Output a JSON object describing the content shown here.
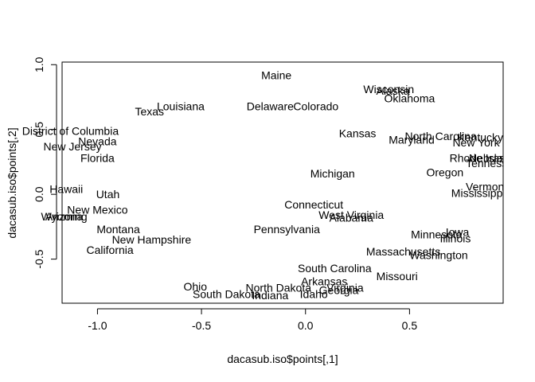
{
  "chart_data": {
    "type": "scatter",
    "title": "",
    "xlabel": "dacasub.iso$points[,1]",
    "ylabel": "dacasub.iso$points[,2]",
    "xlim": [
      -1.17,
      0.95
    ],
    "ylim": [
      -0.84,
      1.02
    ],
    "xticks": [
      -1.0,
      -0.5,
      0.0,
      0.5
    ],
    "xtick_labels": [
      "-1.0",
      "-0.5",
      "0.0",
      "0.5"
    ],
    "yticks": [
      -0.5,
      0.0,
      0.5,
      1.0
    ],
    "ytick_labels": [
      "-0.5",
      "0.0",
      "0.5",
      "1.0"
    ],
    "grid": false,
    "marker": "text-label",
    "points": [
      {
        "label": "Maine",
        "x": -0.14,
        "y": 0.92
      },
      {
        "label": "Alaska",
        "x": 0.42,
        "y": 0.8
      },
      {
        "label": "Wisconsin",
        "x": 0.4,
        "y": 0.81
      },
      {
        "label": "Oklahoma",
        "x": 0.5,
        "y": 0.74
      },
      {
        "label": "Texas",
        "x": -0.75,
        "y": 0.64
      },
      {
        "label": "Louisiana",
        "x": -0.6,
        "y": 0.68
      },
      {
        "label": "Delaware",
        "x": -0.17,
        "y": 0.68
      },
      {
        "label": "Colorado",
        "x": 0.05,
        "y": 0.68
      },
      {
        "label": "District of Columbia",
        "x": -1.13,
        "y": 0.49
      },
      {
        "label": "Kansas",
        "x": 0.25,
        "y": 0.47
      },
      {
        "label": "North Carolina",
        "x": 0.65,
        "y": 0.45
      },
      {
        "label": "Kentucky",
        "x": 0.84,
        "y": 0.44
      },
      {
        "label": "Nevada",
        "x": -1.0,
        "y": 0.41
      },
      {
        "label": "Maryland",
        "x": 0.51,
        "y": 0.42
      },
      {
        "label": "New York",
        "x": 0.82,
        "y": 0.4
      },
      {
        "label": "New Jersey",
        "x": -1.12,
        "y": 0.37
      },
      {
        "label": "Florida",
        "x": -1.0,
        "y": 0.28
      },
      {
        "label": "Rhode Island",
        "x": 0.85,
        "y": 0.28
      },
      {
        "label": "Nebraska",
        "x": 0.9,
        "y": 0.28
      },
      {
        "label": "Tennessee",
        "x": 0.9,
        "y": 0.24
      },
      {
        "label": "Michigan",
        "x": 0.13,
        "y": 0.16
      },
      {
        "label": "Oregon",
        "x": 0.67,
        "y": 0.17
      },
      {
        "label": "Vermont",
        "x": 0.87,
        "y": 0.06
      },
      {
        "label": "Hawaii",
        "x": -1.15,
        "y": 0.04
      },
      {
        "label": "Mississippi",
        "x": 0.83,
        "y": 0.01
      },
      {
        "label": "Utah",
        "x": -0.95,
        "y": 0.0
      },
      {
        "label": "Connecticut",
        "x": 0.04,
        "y": -0.08
      },
      {
        "label": "New Mexico",
        "x": -1.0,
        "y": -0.12
      },
      {
        "label": "West Virginia",
        "x": 0.22,
        "y": -0.16
      },
      {
        "label": "Alabama",
        "x": 0.22,
        "y": -0.18
      },
      {
        "label": "Arizona",
        "x": -1.16,
        "y": -0.17
      },
      {
        "label": "Wyoming",
        "x": -1.16,
        "y": -0.17
      },
      {
        "label": "Montana",
        "x": -0.9,
        "y": -0.27
      },
      {
        "label": "Pennsylvania",
        "x": -0.09,
        "y": -0.27
      },
      {
        "label": "Iowa",
        "x": 0.73,
        "y": -0.29
      },
      {
        "label": "Minnesota",
        "x": 0.63,
        "y": -0.31
      },
      {
        "label": "Illinois",
        "x": 0.72,
        "y": -0.34
      },
      {
        "label": "New Hampshire",
        "x": -0.74,
        "y": -0.35
      },
      {
        "label": "California",
        "x": -0.94,
        "y": -0.43
      },
      {
        "label": "Massachusetts",
        "x": 0.47,
        "y": -0.44
      },
      {
        "label": "Washington",
        "x": 0.64,
        "y": -0.47
      },
      {
        "label": "South Carolina",
        "x": 0.14,
        "y": -0.57
      },
      {
        "label": "Missouri",
        "x": 0.44,
        "y": -0.63
      },
      {
        "label": "Arkansas",
        "x": 0.09,
        "y": -0.67
      },
      {
        "label": "Ohio",
        "x": -0.53,
        "y": -0.71
      },
      {
        "label": "North Dakota",
        "x": -0.13,
        "y": -0.72
      },
      {
        "label": "Virginia",
        "x": 0.19,
        "y": -0.72
      },
      {
        "label": "Georgia",
        "x": 0.16,
        "y": -0.74
      },
      {
        "label": "South Dakota",
        "x": -0.38,
        "y": -0.77
      },
      {
        "label": "Indiana",
        "x": -0.17,
        "y": -0.78
      },
      {
        "label": "Idaho",
        "x": 0.04,
        "y": -0.77
      }
    ]
  }
}
